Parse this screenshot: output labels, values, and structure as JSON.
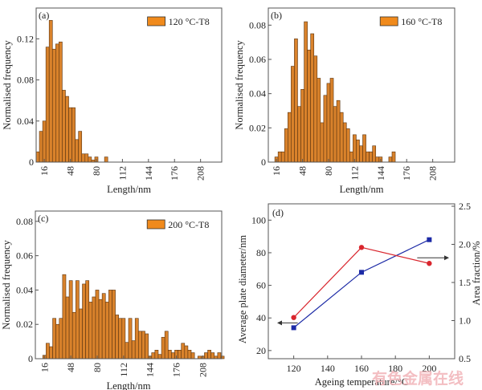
{
  "chart_data": [
    {
      "id": "a",
      "type": "bar",
      "panel_label": "(a)",
      "legend": "120 °C-T8",
      "legend_position": "top-right",
      "xlabel": "Length/nm",
      "ylabel": "Normalised frequency",
      "xlim": [
        6,
        234
      ],
      "ylim": [
        0,
        0.15
      ],
      "xticks": [
        16,
        48,
        80,
        112,
        144,
        176,
        208
      ],
      "yticks": [
        0,
        0.04,
        0.08,
        0.12
      ],
      "ytick_labels": [
        "0",
        "0.04",
        "0.08",
        "0.12"
      ],
      "bin_width": 4,
      "bin_start": 6,
      "values": [
        0.01,
        0.03,
        0.04,
        0.112,
        0.138,
        0.11,
        0.115,
        0.117,
        0.07,
        0.064,
        0.053,
        0.053,
        0.022,
        0.03,
        0.008,
        0.008,
        0.005,
        0.002,
        0.005,
        0,
        0,
        0.005
      ]
    },
    {
      "id": "b",
      "type": "bar",
      "panel_label": "(b)",
      "legend": "160 °C-T8",
      "legend_position": "top-right",
      "xlabel": "Length/nm",
      "ylabel": "Normalised frequency",
      "xlim": [
        6,
        235
      ],
      "ylim": [
        0,
        0.09
      ],
      "xticks": [
        16,
        48,
        80,
        112,
        144,
        176,
        208
      ],
      "yticks": [
        0,
        0.02,
        0.04,
        0.06,
        0.08
      ],
      "ytick_labels": [
        "0",
        "0.02",
        "0.04",
        "0.06",
        "0.08"
      ],
      "bin_width": 4,
      "bin_start": 14,
      "values": [
        0.003,
        0.006,
        0.006,
        0.0195,
        0.029,
        0.056,
        0.072,
        0.0325,
        0.0425,
        0.082,
        0.0655,
        0.075,
        0.062,
        0.049,
        0.023,
        0.039,
        0.046,
        0.049,
        0.0325,
        0.036,
        0.029,
        0.023,
        0.0195,
        0.006,
        0.016,
        0.013,
        0.0095,
        0.016,
        0.006,
        0.006,
        0.0095,
        0.003,
        0.003,
        0,
        0,
        0.003,
        0.006
      ]
    },
    {
      "id": "c",
      "type": "bar",
      "panel_label": "(c)",
      "legend": "200 °C-T8",
      "legend_position": "top-right",
      "xlabel": "Length/nm",
      "ylabel": "Normalised frequency",
      "xlim": [
        5,
        231
      ],
      "ylim": [
        0,
        0.086
      ],
      "xticks": [
        16,
        48,
        80,
        112,
        144,
        176,
        208
      ],
      "yticks": [
        0,
        0.02,
        0.04,
        0.06,
        0.08
      ],
      "ytick_labels": [
        "0",
        "0.02",
        "0.04",
        "0.06",
        "0.08"
      ],
      "bin_width": 4,
      "bin_start": 14,
      "values": [
        0.002,
        0.009,
        0.007,
        0.0235,
        0.02,
        0.0235,
        0.049,
        0.036,
        0.0455,
        0.027,
        0.0455,
        0.029,
        0.0435,
        0.0455,
        0.033,
        0.036,
        0.04,
        0.0345,
        0.038,
        0.033,
        0.04,
        0.04,
        0.0255,
        0.0235,
        0.0235,
        0.0095,
        0.0235,
        0.0105,
        0.0235,
        0.016,
        0.016,
        0.0145,
        0.0015,
        0.0035,
        0.005,
        0.0025,
        0.0125,
        0.016,
        0.005,
        0.0035,
        0.005,
        0.005,
        0.009,
        0.0075,
        0.005,
        0.0035,
        0,
        0.0015,
        0.0015,
        0.0035,
        0.005,
        0.0035,
        0.0015,
        0.0035,
        0.0015
      ]
    },
    {
      "id": "d",
      "type": "line",
      "panel_label": "(d)",
      "xlabel": "Ageing temperature/°C",
      "ylabel": "Average plate diameter/nm",
      "ylabel_right": "Area fraction/%",
      "xlim": [
        105,
        215
      ],
      "ylim": [
        15,
        110
      ],
      "ylim_right": [
        0.5,
        2.5
      ],
      "xticks": [
        120,
        140,
        160,
        180,
        200
      ],
      "yticks": [
        20,
        40,
        60,
        80,
        100
      ],
      "yticks_right": [
        0.5,
        1.0,
        1.5,
        2.0,
        2.5
      ],
      "ytick_right_labels": [
        "0.5",
        "1.0",
        "1.5",
        "2.0",
        "2.5"
      ],
      "x": [
        120,
        160,
        200
      ],
      "series": [
        {
          "name": "Average plate diameter",
          "axis": "left",
          "marker": "square",
          "color": "#1c2aa6",
          "values": [
            34,
            68,
            88
          ]
        },
        {
          "name": "Area fraction",
          "axis": "right",
          "marker": "circle",
          "color": "#d9262e",
          "values": [
            1.04,
            1.96,
            1.75
          ]
        }
      ],
      "annotations": [
        {
          "type": "arrow",
          "direction": "left",
          "points_to": "left axis",
          "series": "Average plate diameter"
        },
        {
          "type": "arrow",
          "direction": "right",
          "points_to": "right axis",
          "series": "Area fraction"
        }
      ]
    }
  ],
  "colors": {
    "bar_fill": "#d9822b",
    "bar_stroke": "#5a3410",
    "legend_fill": "#f08a1c",
    "axis": "#555555"
  },
  "watermark": "有色金属在线"
}
